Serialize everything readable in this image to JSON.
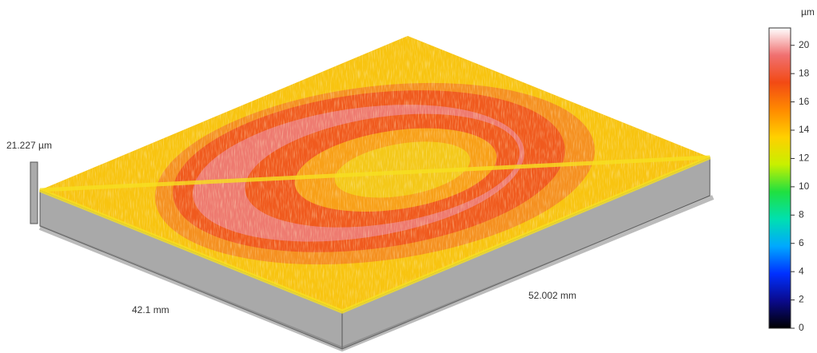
{
  "chart_data": {
    "type": "surface3d",
    "z_label": "21.227 µm",
    "x_label": "42.1 mm",
    "y_label": "52.002 mm",
    "colorbar": {
      "unit": "µm",
      "lim": [
        0,
        21.227
      ],
      "ticks": [
        0,
        2,
        4,
        6,
        8,
        10,
        12,
        14,
        16,
        18,
        20
      ],
      "colors": [
        "#000000",
        "#0a0a8c",
        "#0030ff",
        "#00a8ff",
        "#00e0b0",
        "#20e040",
        "#c8f000",
        "#ffd000",
        "#ff8a00",
        "#f24a14",
        "#f07070",
        "#ffffff"
      ]
    }
  }
}
